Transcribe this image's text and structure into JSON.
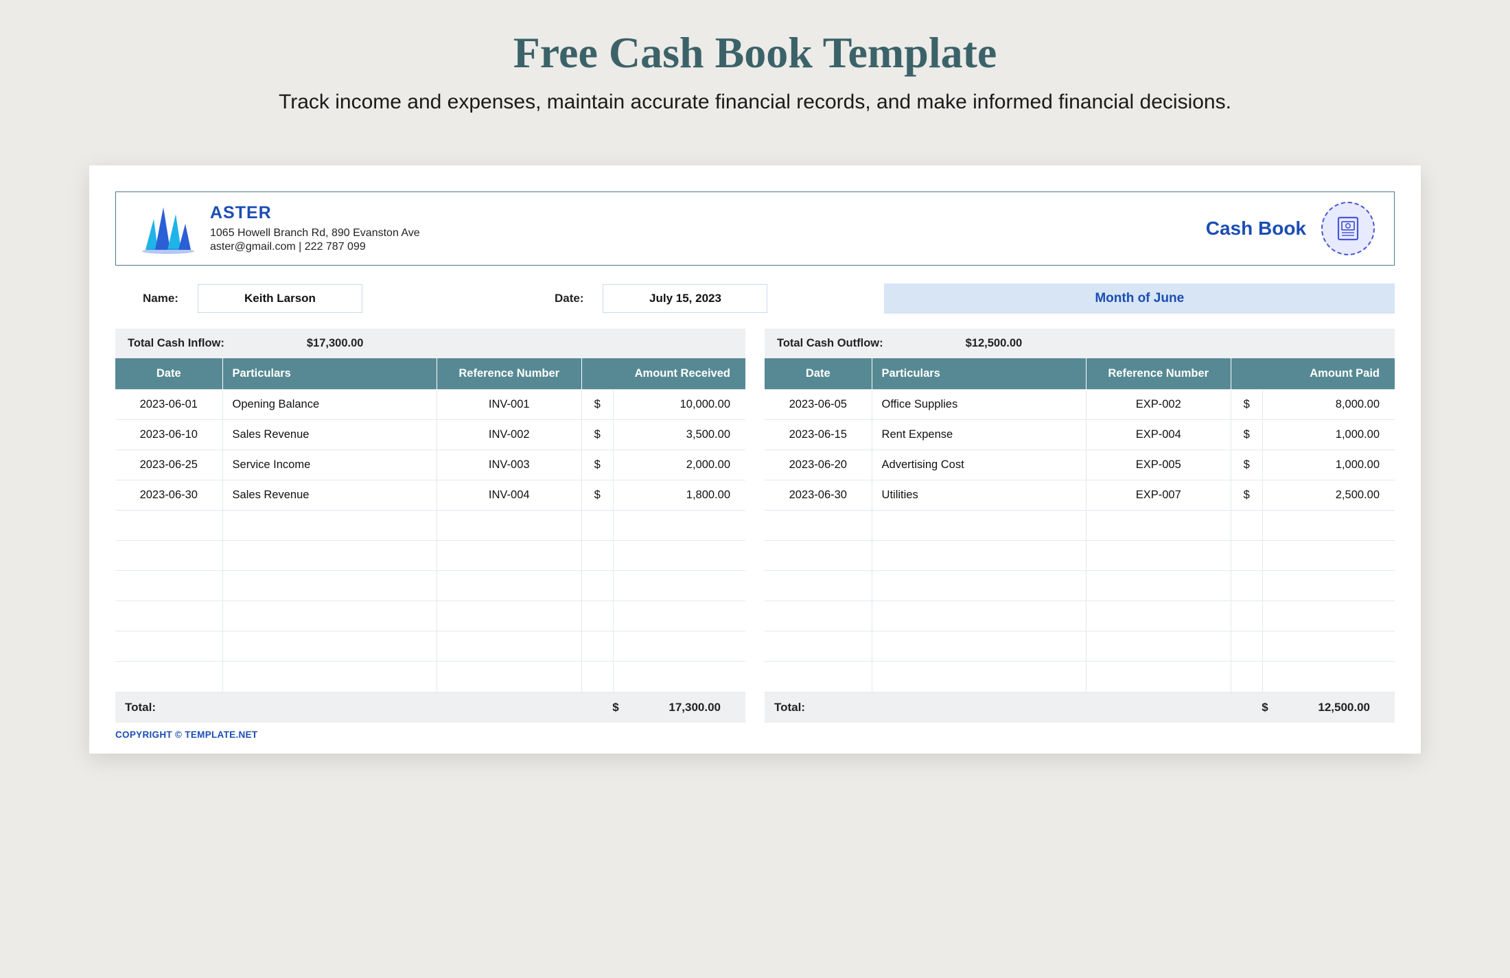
{
  "page": {
    "title": "Free Cash Book Template",
    "subtitle": "Track income and expenses, maintain accurate financial records, and make informed financial decisions."
  },
  "company": {
    "name": "ASTER",
    "address": "1065 Howell Branch Rd, 890 Evanston Ave",
    "contact": "aster@gmail.com | 222 787 099"
  },
  "doc": {
    "title": "Cash Book",
    "icon": "book-icon"
  },
  "meta": {
    "name_label": "Name:",
    "name_value": "Keith Larson",
    "date_label": "Date:",
    "date_value": "July 15, 2023",
    "month_label": "Month of June"
  },
  "inflow": {
    "summary_label": "Total Cash Inflow:",
    "summary_value": "$17,300.00",
    "columns": [
      "Date",
      "Particulars",
      "Reference Number",
      "Amount Received"
    ],
    "currency": "$",
    "rows": [
      {
        "date": "2023-06-01",
        "particulars": "Opening Balance",
        "ref": "INV-001",
        "amount": "10,000.00"
      },
      {
        "date": "2023-06-10",
        "particulars": "Sales Revenue",
        "ref": "INV-002",
        "amount": "3,500.00"
      },
      {
        "date": "2023-06-25",
        "particulars": "Service Income",
        "ref": "INV-003",
        "amount": "2,000.00"
      },
      {
        "date": "2023-06-30",
        "particulars": "Sales Revenue",
        "ref": "INV-004",
        "amount": "1,800.00"
      }
    ],
    "empty_rows": 6,
    "total_label": "Total:",
    "total_value": "17,300.00"
  },
  "outflow": {
    "summary_label": "Total Cash Outflow:",
    "summary_value": "$12,500.00",
    "columns": [
      "Date",
      "Particulars",
      "Reference Number",
      "Amount Paid"
    ],
    "currency": "$",
    "rows": [
      {
        "date": "2023-06-05",
        "particulars": "Office Supplies",
        "ref": "EXP-002",
        "amount": "8,000.00"
      },
      {
        "date": "2023-06-15",
        "particulars": "Rent Expense",
        "ref": "EXP-004",
        "amount": "1,000.00"
      },
      {
        "date": "2023-06-20",
        "particulars": "Advertising Cost",
        "ref": "EXP-005",
        "amount": "1,000.00"
      },
      {
        "date": "2023-06-30",
        "particulars": "Utilities",
        "ref": "EXP-007",
        "amount": "2,500.00"
      }
    ],
    "empty_rows": 6,
    "total_label": "Total:",
    "total_value": "12,500.00"
  },
  "copyright": "COPYRIGHT © TEMPLATE.NET",
  "colors": {
    "page_bg": "#ecebe7",
    "title": "#3c6269",
    "brand_blue": "#1b4db3",
    "header_teal": "#568994",
    "border_teal": "#4a7a82",
    "month_bg": "#d7e5f5",
    "row_border": "#e2e9ee",
    "summary_bg": "#eef0f2",
    "input_border": "#c9d9ed"
  }
}
